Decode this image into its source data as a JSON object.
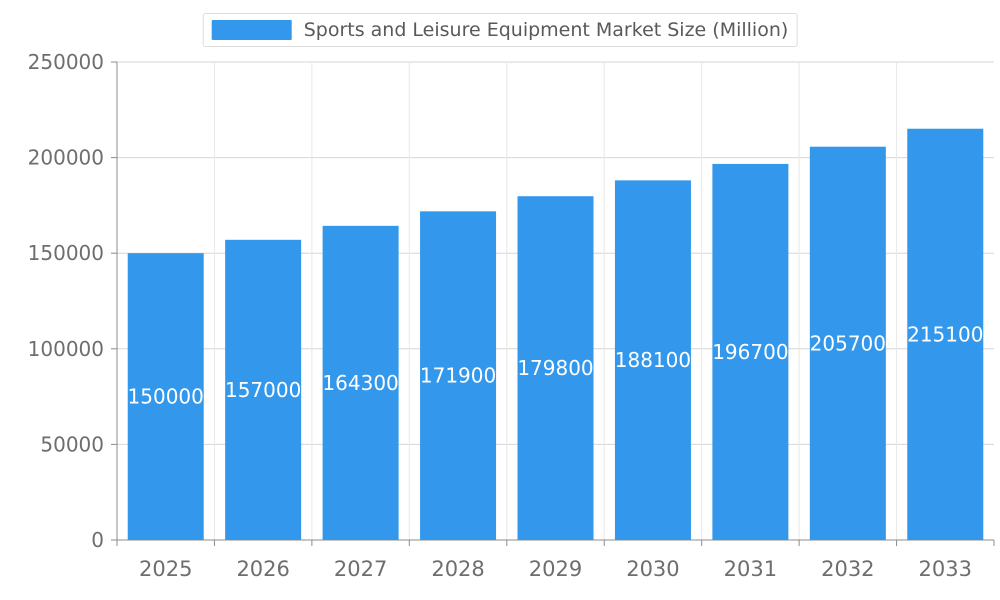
{
  "chart_data": {
    "type": "bar",
    "title": "Sports and Leisure Equipment Market Size (Million)",
    "categories": [
      "2025",
      "2026",
      "2027",
      "2028",
      "2029",
      "2030",
      "2031",
      "2032",
      "2033"
    ],
    "values": [
      150000,
      157000,
      164300,
      171900,
      179800,
      188100,
      196700,
      205700,
      215100
    ],
    "value_labels": [
      "150000",
      "157000",
      "164300",
      "171900",
      "179800",
      "188100",
      "196700",
      "205700",
      "215100"
    ],
    "xlabel": "",
    "ylabel": "",
    "ylim": [
      0,
      250000
    ],
    "y_ticks": [
      0,
      50000,
      100000,
      150000,
      200000,
      250000
    ],
    "grid": true,
    "legend_position": "top"
  },
  "colors": {
    "bar": "#3398EB",
    "grid": "#d6d6d6",
    "vertical_grid": "#e8e8e8",
    "axis": "#8c8c8c",
    "tick_text": "#6e6e6e",
    "title_text": "#595959",
    "bar_label": "#ffffff",
    "background": "#ffffff"
  }
}
